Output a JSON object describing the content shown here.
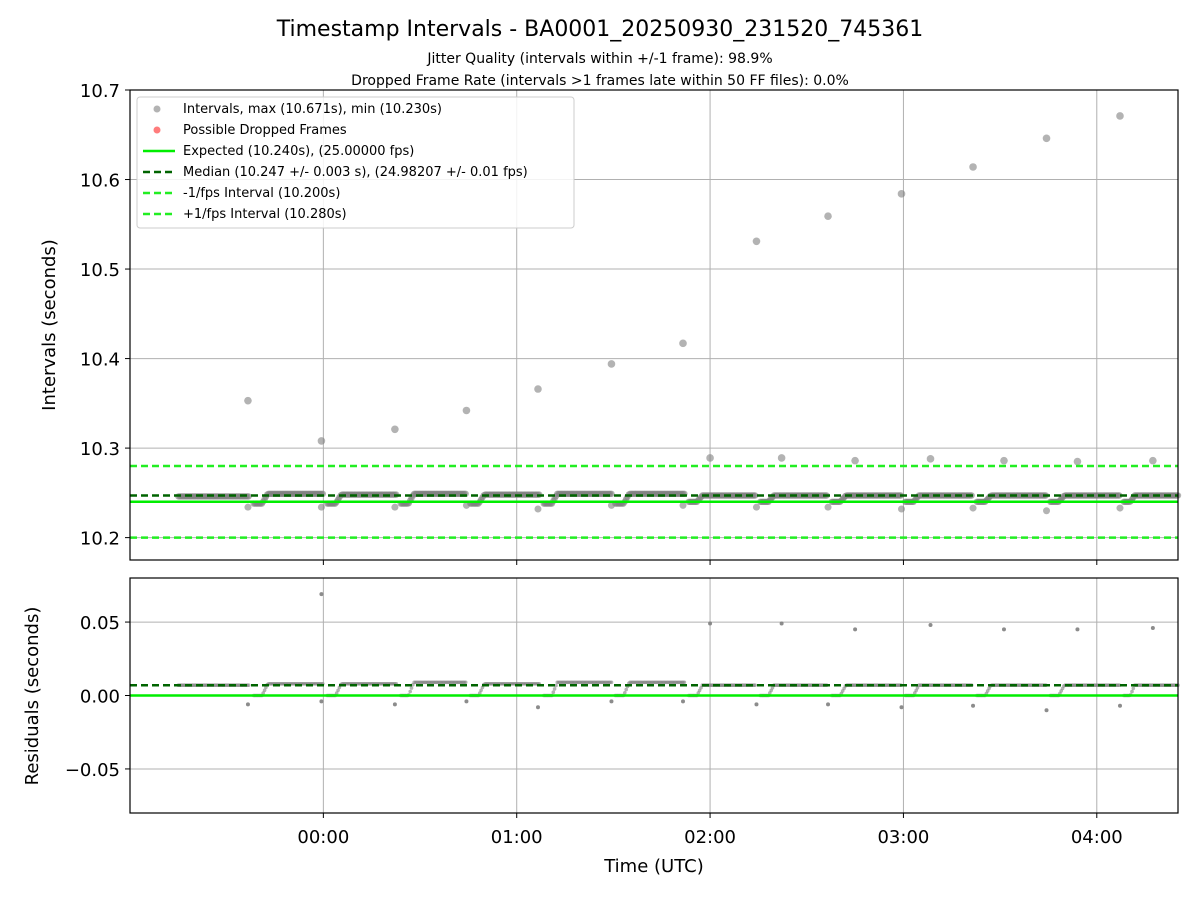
{
  "chart_data": [
    {
      "type": "scatter",
      "title": "Timestamp Intervals - BA0001_20250930_231520_745361",
      "subtitle_lines": [
        "Jitter Quality (intervals within +/-1 frame): 98.9%",
        "Dropped Frame Rate (intervals >1 frames late within 50 FF files): 0.0%"
      ],
      "ylabel": "Intervals (seconds)",
      "ylim": [
        10.175,
        10.7
      ],
      "yticks": [
        "10.2",
        "10.3",
        "10.4",
        "10.5",
        "10.6",
        "10.7"
      ],
      "xlim_hours": [
        -1.0,
        4.42
      ],
      "xticks": [
        "00:00",
        "01:00",
        "02:00",
        "03:00",
        "04:00"
      ],
      "grid": true,
      "legend_position": "top-left",
      "legend": [
        "Intervals, max (10.671s), min (10.230s)",
        "Possible Dropped Frames",
        "Expected (10.240s), (25.00000 fps)",
        "Median (10.247 +/- 0.003 s), (24.98207 +/- 0.01 fps)",
        "-1/fps Interval (10.200s)",
        "+1/fps Interval (10.280s)"
      ],
      "reference_lines": {
        "expected": 10.24,
        "median": 10.247,
        "minus_one_frame": 10.2,
        "plus_one_frame": 10.28
      },
      "outliers": [
        {
          "t": -0.39,
          "y": 10.353
        },
        {
          "t": -0.01,
          "y": 10.308
        },
        {
          "t": 0.37,
          "y": 10.321
        },
        {
          "t": 0.74,
          "y": 10.342
        },
        {
          "t": 1.11,
          "y": 10.366
        },
        {
          "t": 1.49,
          "y": 10.394
        },
        {
          "t": 1.86,
          "y": 10.417
        },
        {
          "t": 2.0,
          "y": 10.289
        },
        {
          "t": 2.24,
          "y": 10.531
        },
        {
          "t": 2.37,
          "y": 10.289
        },
        {
          "t": 2.61,
          "y": 10.559
        },
        {
          "t": 2.75,
          "y": 10.286
        },
        {
          "t": 2.99,
          "y": 10.584
        },
        {
          "t": 3.14,
          "y": 10.288
        },
        {
          "t": 3.36,
          "y": 10.614
        },
        {
          "t": 3.52,
          "y": 10.286
        },
        {
          "t": 3.74,
          "y": 10.646
        },
        {
          "t": 3.9,
          "y": 10.285
        },
        {
          "t": 4.12,
          "y": 10.671
        },
        {
          "t": 4.29,
          "y": 10.286
        }
      ],
      "low_points": [
        {
          "t": -0.39,
          "y": 10.234
        },
        {
          "t": -0.01,
          "y": 10.234
        },
        {
          "t": 0.37,
          "y": 10.234
        },
        {
          "t": 0.74,
          "y": 10.236
        },
        {
          "t": 1.11,
          "y": 10.232
        },
        {
          "t": 1.49,
          "y": 10.236
        },
        {
          "t": 1.86,
          "y": 10.236
        },
        {
          "t": 2.24,
          "y": 10.234
        },
        {
          "t": 2.61,
          "y": 10.234
        },
        {
          "t": 2.99,
          "y": 10.232
        },
        {
          "t": 3.36,
          "y": 10.233
        },
        {
          "t": 3.74,
          "y": 10.23
        },
        {
          "t": 4.12,
          "y": 10.233
        }
      ],
      "segments": [
        {
          "start": -0.75,
          "end": -0.38,
          "level": 10.246,
          "low": 10.238
        },
        {
          "start": -0.36,
          "end": 0.0,
          "level": 10.249,
          "low": 10.238
        },
        {
          "start": 0.02,
          "end": 0.38,
          "level": 10.248,
          "low": 10.238
        },
        {
          "start": 0.4,
          "end": 0.74,
          "level": 10.249,
          "low": 10.238
        },
        {
          "start": 0.76,
          "end": 1.12,
          "level": 10.248,
          "low": 10.238
        },
        {
          "start": 1.14,
          "end": 1.49,
          "level": 10.249,
          "low": 10.238
        },
        {
          "start": 1.51,
          "end": 1.87,
          "level": 10.249,
          "low": 10.238
        },
        {
          "start": 1.89,
          "end": 2.24,
          "level": 10.247,
          "low": 10.24
        },
        {
          "start": 2.26,
          "end": 2.61,
          "level": 10.247,
          "low": 10.24
        },
        {
          "start": 2.63,
          "end": 2.99,
          "level": 10.247,
          "low": 10.24
        },
        {
          "start": 3.01,
          "end": 3.36,
          "level": 10.247,
          "low": 10.24
        },
        {
          "start": 3.38,
          "end": 3.74,
          "level": 10.247,
          "low": 10.24
        },
        {
          "start": 3.76,
          "end": 4.12,
          "level": 10.247,
          "low": 10.24
        },
        {
          "start": 4.14,
          "end": 4.42,
          "level": 10.247,
          "low": 10.24
        }
      ]
    },
    {
      "type": "scatter",
      "ylabel": "Residuals (seconds)",
      "xlabel": "Time (UTC)",
      "ylim": [
        -0.08,
        0.08
      ],
      "yticks": [
        "0.05",
        "0.00",
        "−0.05"
      ],
      "xticks": [
        "00:00",
        "01:00",
        "02:00",
        "03:00",
        "04:00"
      ],
      "grid": true,
      "reference_lines": {
        "zero": 0.0,
        "median_residual": 0.007
      },
      "outliers": [
        {
          "t": -0.01,
          "y": 0.069
        },
        {
          "t": 2.0,
          "y": 0.049
        },
        {
          "t": 2.37,
          "y": 0.049
        },
        {
          "t": 2.75,
          "y": 0.045
        },
        {
          "t": 3.14,
          "y": 0.048
        },
        {
          "t": 3.52,
          "y": 0.045
        },
        {
          "t": 3.9,
          "y": 0.045
        },
        {
          "t": 4.29,
          "y": 0.046
        }
      ],
      "low_points": [
        {
          "t": -0.39,
          "y": -0.006
        },
        {
          "t": -0.01,
          "y": -0.004
        },
        {
          "t": 0.37,
          "y": -0.006
        },
        {
          "t": 0.74,
          "y": -0.004
        },
        {
          "t": 1.11,
          "y": -0.008
        },
        {
          "t": 1.49,
          "y": -0.004
        },
        {
          "t": 1.86,
          "y": -0.004
        },
        {
          "t": 2.24,
          "y": -0.006
        },
        {
          "t": 2.61,
          "y": -0.006
        },
        {
          "t": 2.99,
          "y": -0.008
        },
        {
          "t": 3.36,
          "y": -0.007
        },
        {
          "t": 3.74,
          "y": -0.01
        },
        {
          "t": 4.12,
          "y": -0.007
        }
      ],
      "segments": [
        {
          "start": -0.75,
          "end": -0.38,
          "level": 0.007,
          "low": 0.005
        },
        {
          "start": -0.36,
          "end": 0.0,
          "level": 0.008,
          "low": 0.0
        },
        {
          "start": 0.02,
          "end": 0.38,
          "level": 0.008,
          "low": 0.0
        },
        {
          "start": 0.4,
          "end": 0.74,
          "level": 0.009,
          "low": 0.0
        },
        {
          "start": 0.76,
          "end": 1.12,
          "level": 0.008,
          "low": 0.0
        },
        {
          "start": 1.14,
          "end": 1.49,
          "level": 0.009,
          "low": 0.0
        },
        {
          "start": 1.51,
          "end": 1.87,
          "level": 0.009,
          "low": 0.0
        },
        {
          "start": 1.89,
          "end": 2.24,
          "level": 0.007,
          "low": 0.0
        },
        {
          "start": 2.26,
          "end": 2.61,
          "level": 0.007,
          "low": 0.0
        },
        {
          "start": 2.63,
          "end": 2.99,
          "level": 0.007,
          "low": 0.0
        },
        {
          "start": 3.01,
          "end": 3.36,
          "level": 0.007,
          "low": 0.0
        },
        {
          "start": 3.38,
          "end": 3.74,
          "level": 0.007,
          "low": 0.0
        },
        {
          "start": 3.76,
          "end": 4.12,
          "level": 0.007,
          "low": 0.0
        },
        {
          "start": 4.14,
          "end": 4.42,
          "level": 0.007,
          "low": 0.0
        }
      ]
    }
  ],
  "colors": {
    "points": "#808080",
    "dropped": "#ff6666",
    "expected": "#00ee00",
    "median": "#006400",
    "bounds": "#22ee22",
    "grid": "#b0b0b0",
    "axis": "#000000"
  }
}
